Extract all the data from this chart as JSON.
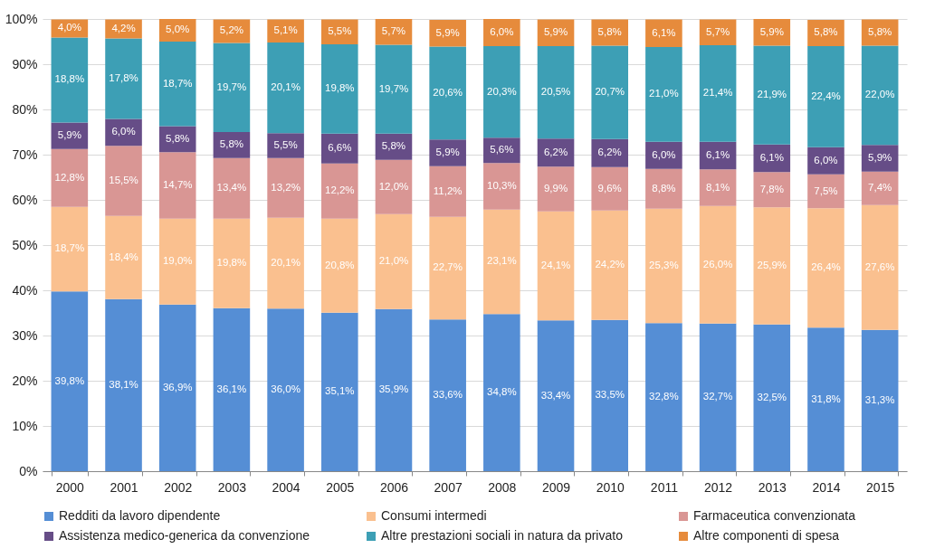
{
  "chart_data": {
    "type": "bar",
    "stacked": true,
    "legend": "bottom",
    "grid": "y",
    "ylim": [
      0,
      100.1
    ],
    "yticks": [
      {
        "value": 0,
        "label": "0%"
      },
      {
        "value": 10,
        "label": "10%"
      },
      {
        "value": 20,
        "label": "20%"
      },
      {
        "value": 30,
        "label": "30%"
      },
      {
        "value": 40,
        "label": "40%"
      },
      {
        "value": 50,
        "label": "50%"
      },
      {
        "value": 60,
        "label": "60%"
      },
      {
        "value": 70,
        "label": "70%"
      },
      {
        "value": 80,
        "label": "80%"
      },
      {
        "value": 90,
        "label": "90%"
      },
      {
        "value": 100,
        "label": "100%"
      }
    ],
    "categories": [
      "2000",
      "2001",
      "2002",
      "2003",
      "2004",
      "2005",
      "2006",
      "2007",
      "2008",
      "2009",
      "2010",
      "2011",
      "2012",
      "2013",
      "2014",
      "2015"
    ],
    "series": [
      {
        "name": "Redditi da lavoro dipendente",
        "color": "#558ed5",
        "values": [
          39.8,
          38.1,
          36.9,
          36.1,
          36.0,
          35.1,
          35.9,
          33.6,
          34.8,
          33.4,
          33.5,
          32.8,
          32.7,
          32.5,
          31.8,
          31.3
        ],
        "value_labels": [
          "39,8%",
          "38,1%",
          "36,9%",
          "36,1%",
          "36,0%",
          "35,1%",
          "35,9%",
          "33,6%",
          "34,8%",
          "33,4%",
          "33,5%",
          "32,8%",
          "32,7%",
          "32,5%",
          "31,8%",
          "31,3%"
        ]
      },
      {
        "name": "Consumi intermedi",
        "color": "#fac08f",
        "values": [
          18.7,
          18.4,
          19.0,
          19.8,
          20.1,
          20.8,
          21.0,
          22.7,
          23.1,
          24.1,
          24.2,
          25.3,
          26.0,
          25.9,
          26.4,
          27.6
        ],
        "value_labels": [
          "18,7%",
          "18,4%",
          "19,0%",
          "19,8%",
          "20,1%",
          "20,8%",
          "21,0%",
          "22,7%",
          "23,1%",
          "24,1%",
          "24,2%",
          "25,3%",
          "26,0%",
          "25,9%",
          "26,4%",
          "27,6%"
        ]
      },
      {
        "name": "Farmaceutica convenzionata",
        "color": "#d99694",
        "values": [
          12.8,
          15.5,
          14.7,
          13.4,
          13.2,
          12.2,
          12.0,
          11.2,
          10.3,
          9.9,
          9.6,
          8.8,
          8.1,
          7.8,
          7.5,
          7.4
        ],
        "value_labels": [
          "12,8%",
          "15,5%",
          "14,7%",
          "13,4%",
          "13,2%",
          "12,2%",
          "12,0%",
          "11,2%",
          "10,3%",
          "9,9%",
          "9,6%",
          "8,8%",
          "8,1%",
          "7,8%",
          "7,5%",
          "7,4%"
        ]
      },
      {
        "name": "Assistenza medico-generica da convenzione",
        "color": "#664d87",
        "values": [
          5.9,
          6.0,
          5.8,
          5.8,
          5.5,
          6.6,
          5.8,
          5.9,
          5.6,
          6.2,
          6.2,
          6.0,
          6.1,
          6.1,
          6.0,
          5.9
        ],
        "value_labels": [
          "5,9%",
          "6,0%",
          "5,8%",
          "5,8%",
          "5,5%",
          "6,6%",
          "5,8%",
          "5,9%",
          "5,6%",
          "6,2%",
          "6,2%",
          "6,0%",
          "6,1%",
          "6,1%",
          "6,0%",
          "5,9%"
        ]
      },
      {
        "name": "Altre prestazioni sociali in natura da privato",
        "color": "#3d9fb5",
        "values": [
          18.8,
          17.8,
          18.7,
          19.7,
          20.1,
          19.8,
          19.7,
          20.6,
          20.3,
          20.5,
          20.7,
          21.0,
          21.4,
          21.9,
          22.4,
          22.0
        ],
        "value_labels": [
          "18,8%",
          "17,8%",
          "18,7%",
          "19,7%",
          "20,1%",
          "19,8%",
          "19,7%",
          "20,6%",
          "20,3%",
          "20,5%",
          "20,7%",
          "21,0%",
          "21,4%",
          "21,9%",
          "22,4%",
          "22,0%"
        ]
      },
      {
        "name": "Altre componenti di spesa",
        "color": "#e68b3c",
        "values": [
          4.0,
          4.2,
          5.0,
          5.2,
          5.1,
          5.5,
          5.7,
          5.9,
          6.0,
          5.9,
          5.8,
          6.1,
          5.7,
          5.9,
          5.8,
          5.8
        ],
        "value_labels": [
          "4,0%",
          "4,2%",
          "5,0%",
          "5,2%",
          "5,1%",
          "5,5%",
          "5,7%",
          "5,9%",
          "6,0%",
          "5,9%",
          "5,8%",
          "6,1%",
          "5,7%",
          "5,9%",
          "5,8%",
          "5,8%"
        ]
      }
    ]
  }
}
